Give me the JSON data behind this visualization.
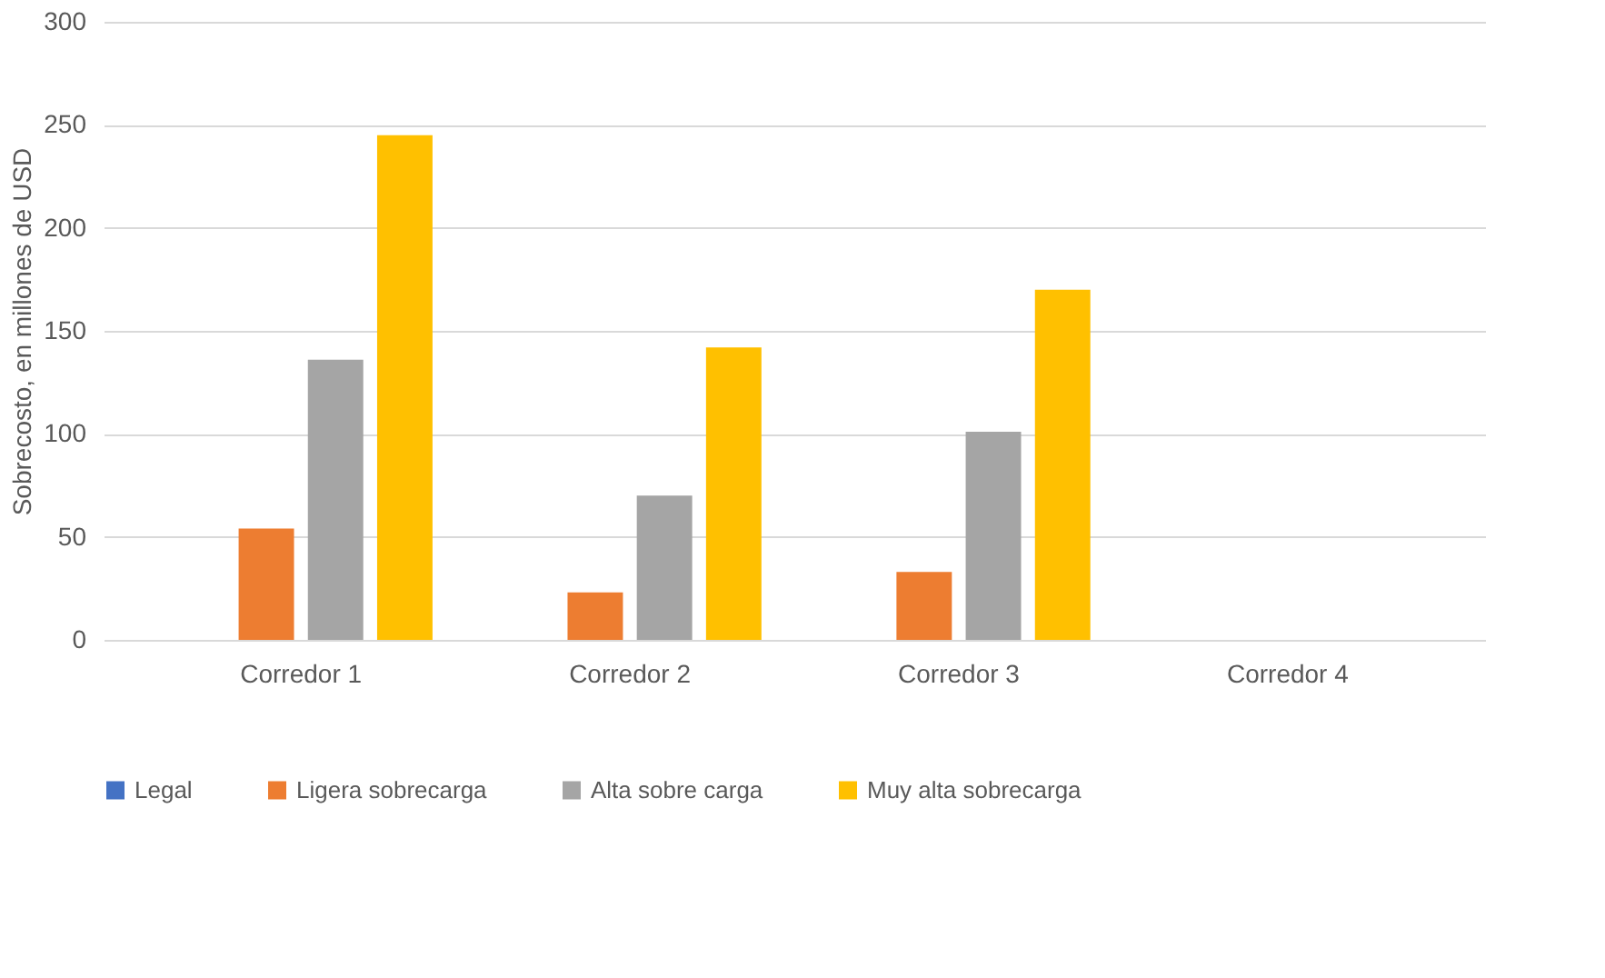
{
  "chart_data": {
    "type": "bar",
    "ylabel": "Sobrecosto, en millones de USD",
    "categories": [
      "Corredor 1",
      "Corredor 2",
      "Corredor 3",
      "Corredor 4"
    ],
    "series": [
      {
        "name": "Legal",
        "color": "#4472c4",
        "values": [
          0,
          0,
          0,
          0
        ]
      },
      {
        "name": "Ligera sobrecarga",
        "color": "#ed7d31",
        "values": [
          54,
          23,
          33,
          0
        ]
      },
      {
        "name": "Alta sobre carga",
        "color": "#a5a5a5",
        "values": [
          136,
          70,
          101,
          0
        ]
      },
      {
        "name": "Muy alta sobrecarga",
        "color": "#ffc000",
        "values": [
          245,
          142,
          170,
          0
        ]
      }
    ],
    "ylim": [
      0,
      300
    ],
    "yticks": [
      0,
      50,
      100,
      150,
      200,
      250,
      300
    ],
    "grid": "y",
    "legend": "bottom"
  }
}
